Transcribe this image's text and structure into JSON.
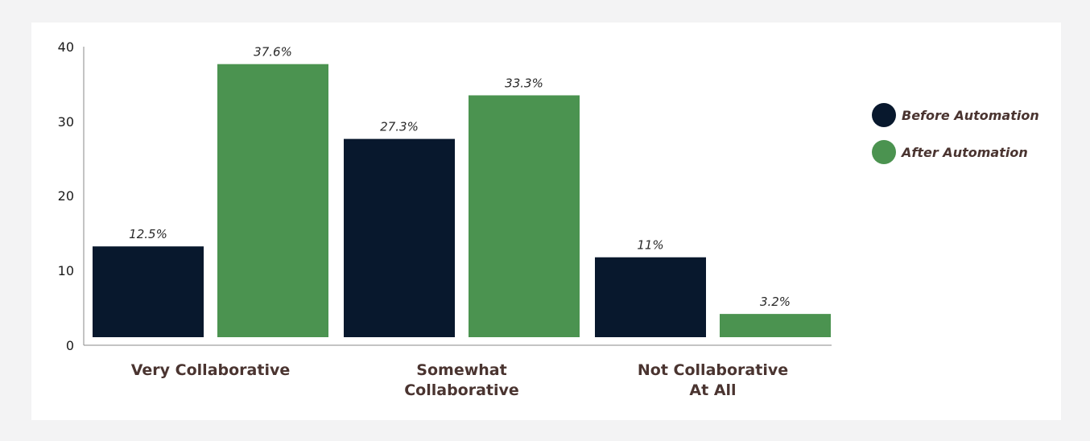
{
  "chart_data": {
    "type": "bar",
    "categories": [
      [
        "Very Collaborative"
      ],
      [
        "Somewhat",
        "Collaborative"
      ],
      [
        "Not Collaborative",
        "At All"
      ]
    ],
    "series": [
      {
        "name": "Before Automation",
        "color": "#08182d",
        "values": [
          12.5,
          27.3,
          11.0
        ],
        "labels": [
          "12.5%",
          "27.3%",
          "11%"
        ]
      },
      {
        "name": "After Automation",
        "color": "#4b9350",
        "values": [
          37.6,
          33.3,
          3.2
        ],
        "labels": [
          "37.6%",
          "33.3%",
          "3.2%"
        ]
      }
    ],
    "yticks": [
      0,
      10,
      20,
      30,
      40
    ],
    "ylim": [
      0,
      40
    ],
    "legend_position": "right",
    "grid": false
  }
}
